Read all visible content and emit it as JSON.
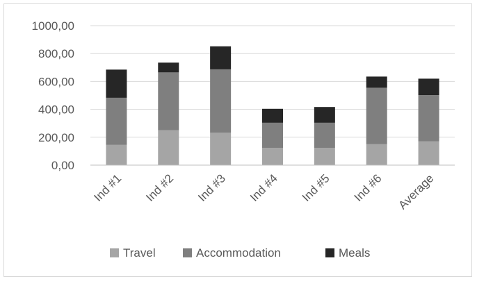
{
  "chart_data": {
    "type": "bar",
    "stacked": true,
    "categories": [
      "Ind #1",
      "Ind #2",
      "Ind #3",
      "Ind #4",
      "Ind #5",
      "Ind #6",
      "Average"
    ],
    "series": [
      {
        "name": "Travel",
        "color": "#a5a5a5",
        "values": [
          145,
          250,
          232,
          124,
          124,
          150,
          170
        ]
      },
      {
        "name": "Accommodation",
        "color": "#7f7f7f",
        "values": [
          338,
          415,
          455,
          180,
          180,
          405,
          332
        ]
      },
      {
        "name": "Meals",
        "color": "#262626",
        "values": [
          202,
          70,
          165,
          100,
          113,
          80,
          118
        ]
      }
    ],
    "ylim": [
      0,
      1000
    ],
    "y_ticks": [
      0,
      200,
      400,
      600,
      800,
      1000
    ],
    "y_tick_labels": [
      "0,00",
      "200,00",
      "400,00",
      "600,00",
      "800,00",
      "1000,00"
    ],
    "grid": true,
    "legend_position": "bottom"
  }
}
